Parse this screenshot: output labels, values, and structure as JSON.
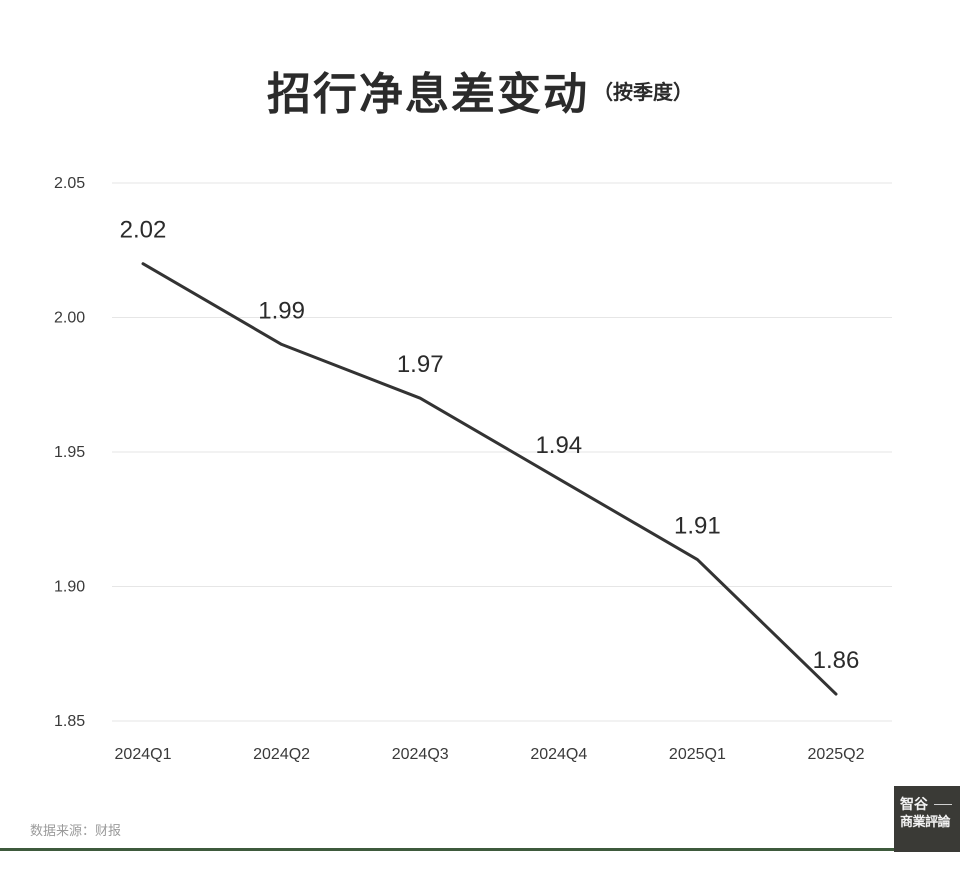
{
  "title": "招行净息差变动",
  "subtitle": "（按季度）",
  "source": "数据来源：财报",
  "logo": {
    "line1": "智谷",
    "line2": "商業評論"
  },
  "chart_data": {
    "type": "line",
    "title": "招行净息差变动",
    "subtitle": "（按季度）",
    "categories": [
      "2024Q1",
      "2024Q2",
      "2024Q3",
      "2024Q4",
      "2025Q1",
      "2025Q2"
    ],
    "series": [
      {
        "values": [
          2.02,
          1.99,
          1.97,
          1.94,
          1.91,
          1.86
        ]
      }
    ],
    "data_labels": [
      "2.02",
      "1.99",
      "1.97",
      "1.94",
      "1.91",
      "1.86"
    ],
    "yticks": [
      "1.85",
      "1.90",
      "1.95",
      "2.00",
      "2.05"
    ],
    "ytick_values": [
      1.85,
      1.9,
      1.95,
      2.0,
      2.05
    ],
    "ylim": [
      1.85,
      2.05
    ],
    "xlabel": "",
    "ylabel": "",
    "grid": true,
    "legend": "none",
    "colors": {
      "line": "#333333",
      "grid": "#e6e6e6",
      "text": "#2b2b2b",
      "tick": "#3a3a3a"
    }
  }
}
